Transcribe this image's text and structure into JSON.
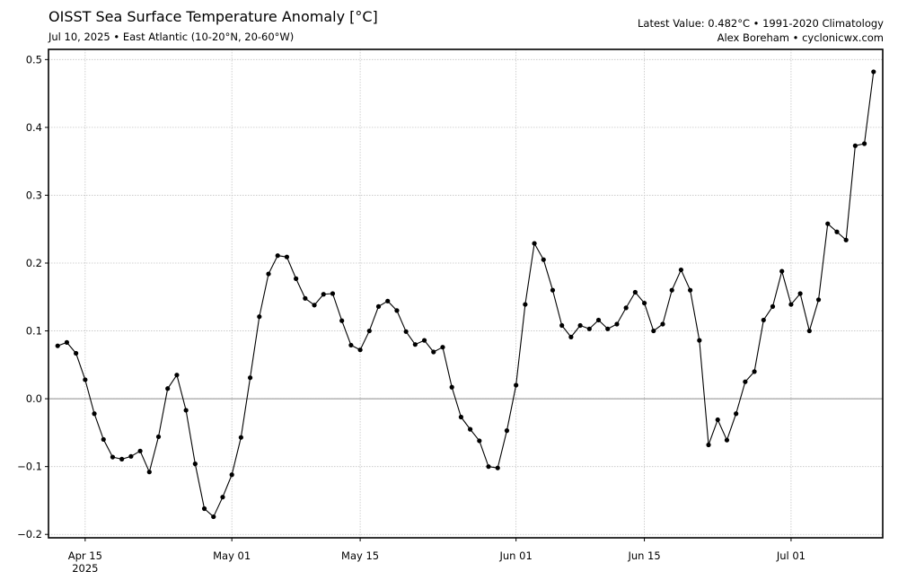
{
  "header": {
    "title": "OISST Sea Surface Temperature Anomaly [°C]",
    "subtitle": "Jul 10, 2025 • East Atlantic (10-20°N, 20-60°W)",
    "latest": "Latest Value: 0.482°C • 1991-2020 Climatology",
    "credit": "Alex Boreham • cyclonicwx.com"
  },
  "chart_data": {
    "type": "line",
    "title": "OISST Sea Surface Temperature Anomaly [°C]",
    "xlabel": "",
    "ylabel": "",
    "x_start": "2025-04-12",
    "xlim": [
      "2025-04-11",
      "2025-07-11"
    ],
    "ylim": [
      -0.205,
      0.515
    ],
    "yticks": [
      {
        "v": 0.5,
        "label": "0.5"
      },
      {
        "v": 0.4,
        "label": "0.4"
      },
      {
        "v": 0.3,
        "label": "0.3"
      },
      {
        "v": 0.2,
        "label": "0.2"
      },
      {
        "v": 0.1,
        "label": "0.1"
      },
      {
        "v": 0.0,
        "label": "0.0"
      },
      {
        "v": -0.1,
        "label": "−0.1"
      },
      {
        "v": -0.2,
        "label": "−0.2"
      }
    ],
    "xticks": [
      {
        "date": "2025-04-15",
        "label": "Apr 15",
        "sublabel": "2025"
      },
      {
        "date": "2025-05-01",
        "label": "May 01",
        "sublabel": ""
      },
      {
        "date": "2025-05-15",
        "label": "May 15",
        "sublabel": ""
      },
      {
        "date": "2025-06-01",
        "label": "Jun 01",
        "sublabel": ""
      },
      {
        "date": "2025-06-15",
        "label": "Jun 15",
        "sublabel": ""
      },
      {
        "date": "2025-07-01",
        "label": "Jul 01",
        "sublabel": ""
      }
    ],
    "grid": true,
    "zero_line": true,
    "series": [
      {
        "name": "",
        "color": "#000000",
        "values": [
          0.078,
          0.083,
          0.067,
          0.028,
          -0.022,
          -0.06,
          -0.086,
          -0.089,
          -0.085,
          -0.077,
          -0.108,
          -0.056,
          0.015,
          0.035,
          -0.017,
          -0.096,
          -0.162,
          -0.174,
          -0.145,
          -0.112,
          -0.057,
          0.031,
          0.121,
          0.184,
          0.211,
          0.209,
          0.177,
          0.148,
          0.138,
          0.154,
          0.155,
          0.115,
          0.079,
          0.072,
          0.1,
          0.136,
          0.144,
          0.13,
          0.099,
          0.08,
          0.086,
          0.069,
          0.076,
          0.017,
          -0.027,
          -0.045,
          -0.062,
          -0.1,
          -0.102,
          -0.047,
          0.02,
          0.139,
          0.229,
          0.205,
          0.16,
          0.108,
          0.091,
          0.108,
          0.103,
          0.116,
          0.103,
          0.11,
          0.134,
          0.157,
          0.141,
          0.1,
          0.11,
          0.16,
          0.19,
          0.16,
          0.086,
          -0.068,
          -0.031,
          -0.061,
          -0.022,
          0.025,
          0.04,
          0.116,
          0.136,
          0.188,
          0.139,
          0.155,
          0.1,
          0.146,
          0.258,
          0.246,
          0.234,
          0.373,
          0.376,
          0.482
        ]
      }
    ]
  }
}
